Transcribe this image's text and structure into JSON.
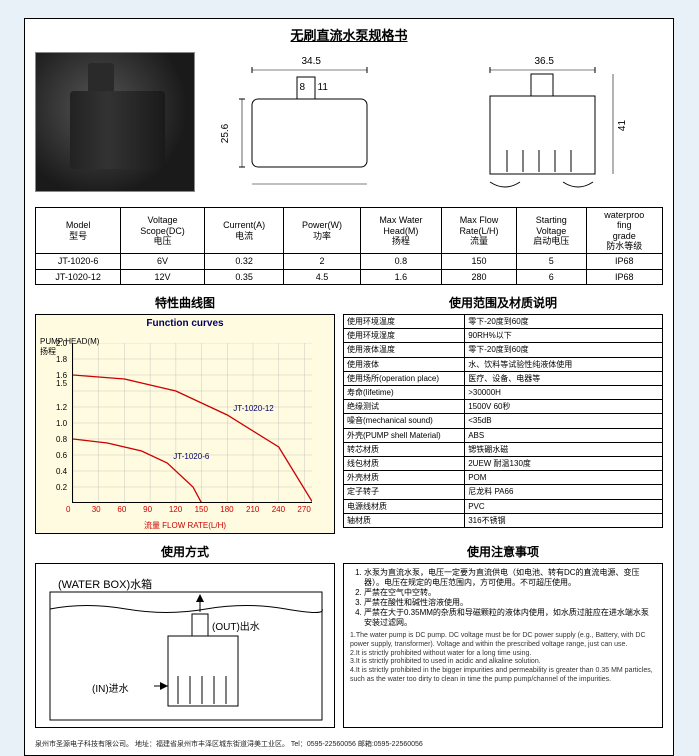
{
  "doc": {
    "title": "无刷直流水泵规格书"
  },
  "dims": {
    "w1": "34.5",
    "w2": "36.5",
    "h1": "25.6",
    "h2": "41",
    "nozzleW": "8",
    "nozzleH": "11"
  },
  "spec": {
    "headers": [
      "Model\n型号",
      "Voltage\nScope(DC)\n电压",
      "Current(A)\n电流",
      "Power(W)\n功率",
      "Max Water\nHead(M)\n扬程",
      "Max Flow\nRate(L/H)\n流量",
      "Starting\nVoltage\n启动电压",
      "waterproo\nfing\ngrade\n防水等级"
    ],
    "rows": [
      [
        "JT-1020-6",
        "6V",
        "0.32",
        "2",
        "0.8",
        "150",
        "5",
        "IP68"
      ],
      [
        "JT-1020-12",
        "12V",
        "0.35",
        "4.5",
        "1.6",
        "280",
        "6",
        "IP68"
      ]
    ]
  },
  "chart": {
    "section_title": "特性曲线图",
    "title": "Function curves",
    "y_title": "PUMP HEAD(M)\n扬程",
    "x_title": "流量 FLOW RATE(L/H)",
    "y_max": 2.0,
    "y_ticks": [
      "2.0",
      "1.8",
      "1.6",
      "1.5",
      "1.2",
      "1.0",
      "0.8",
      "0.6",
      "0.4",
      "0.2"
    ],
    "x_ticks": [
      "0",
      "30",
      "60",
      "90",
      "120",
      "150",
      "180",
      "210",
      "240",
      "270"
    ],
    "bg": "#fffbe0",
    "series": [
      {
        "label": "JT-1020-12",
        "color": "#cc0000",
        "points": [
          [
            0,
            1.6
          ],
          [
            60,
            1.55
          ],
          [
            120,
            1.4
          ],
          [
            180,
            1.1
          ],
          [
            240,
            0.7
          ],
          [
            280,
            0
          ]
        ]
      },
      {
        "label": "JT-1020-6",
        "color": "#cc0000",
        "points": [
          [
            0,
            0.8
          ],
          [
            40,
            0.75
          ],
          [
            80,
            0.65
          ],
          [
            110,
            0.5
          ],
          [
            140,
            0.2
          ],
          [
            150,
            0
          ]
        ]
      }
    ]
  },
  "material": {
    "section_title": "使用范围及材质说明",
    "rows": [
      [
        "使用环境温度",
        "零下-20度到60度"
      ],
      [
        "使用环境湿度",
        "90RH%以下"
      ],
      [
        "使用液体温度",
        "零下-20度到60度"
      ],
      [
        "使用液体",
        "水、饮料等试验性纯液体使用"
      ],
      [
        "使用场所(operation place)",
        "医疗、设备、电器等"
      ],
      [
        "寿命(lifetime)",
        ">30000H"
      ],
      [
        "绝缘测试",
        "1500V 60秒"
      ],
      [
        "噪音(mechanical sound)",
        "<35dB"
      ],
      [
        "外壳(PUMP shell Material)",
        "ABS"
      ],
      [
        "转芯材质",
        "锶铁硼水磁"
      ],
      [
        "线包材质",
        "2UEW 耐温130度"
      ],
      [
        "外壳材质",
        "POM"
      ],
      [
        "定子转子",
        "尼龙料 PA66"
      ],
      [
        "电源线材质",
        "PVC"
      ],
      [
        "轴材质",
        "316不锈钢"
      ]
    ]
  },
  "usage": {
    "section_title": "使用方式",
    "waterbox": "(WATER BOX)水箱",
    "out": "(OUT)出水",
    "in": "(IN)进水"
  },
  "notes": {
    "section_title": "使用注意事项",
    "items": [
      "水泵为直流水泵，电压一定要为直流供电（如电池、转有DC的直流电源、变压器）。电压在规定的电压范围内，方可使用。不可超压使用。",
      "严禁在空气中空转。",
      "严禁在酸性和碱性溶液使用。",
      "严禁在大于0.35MM的杂质和导磁颗粒的液体内使用，如水质过脏应在进水端水泵安装过滤网。"
    ],
    "en": "1.The water pump is DC pump. DC voltage must be for DC power supply (e.g., Battery, with DC power supply, transformer). Voltage and within the prescribed voltage range, just can use.\n2.It is strictly prohibited without water for a long time using.\n3.It is strictly prohibited to used in acidic and alkaline solution.\n4.It is strictly prohibited in the bigger impurities and permeability is greater than 0.35 MM particles, such as the water too dirty to clean in time the pump pump/channel of the impurities."
  },
  "footer": "泉州市圣源电子科技有限公司。   地址：福建省泉州市丰泽区城东街道浔美工业区。  Tel：0595-22560056 邮箱:0595-22560056"
}
